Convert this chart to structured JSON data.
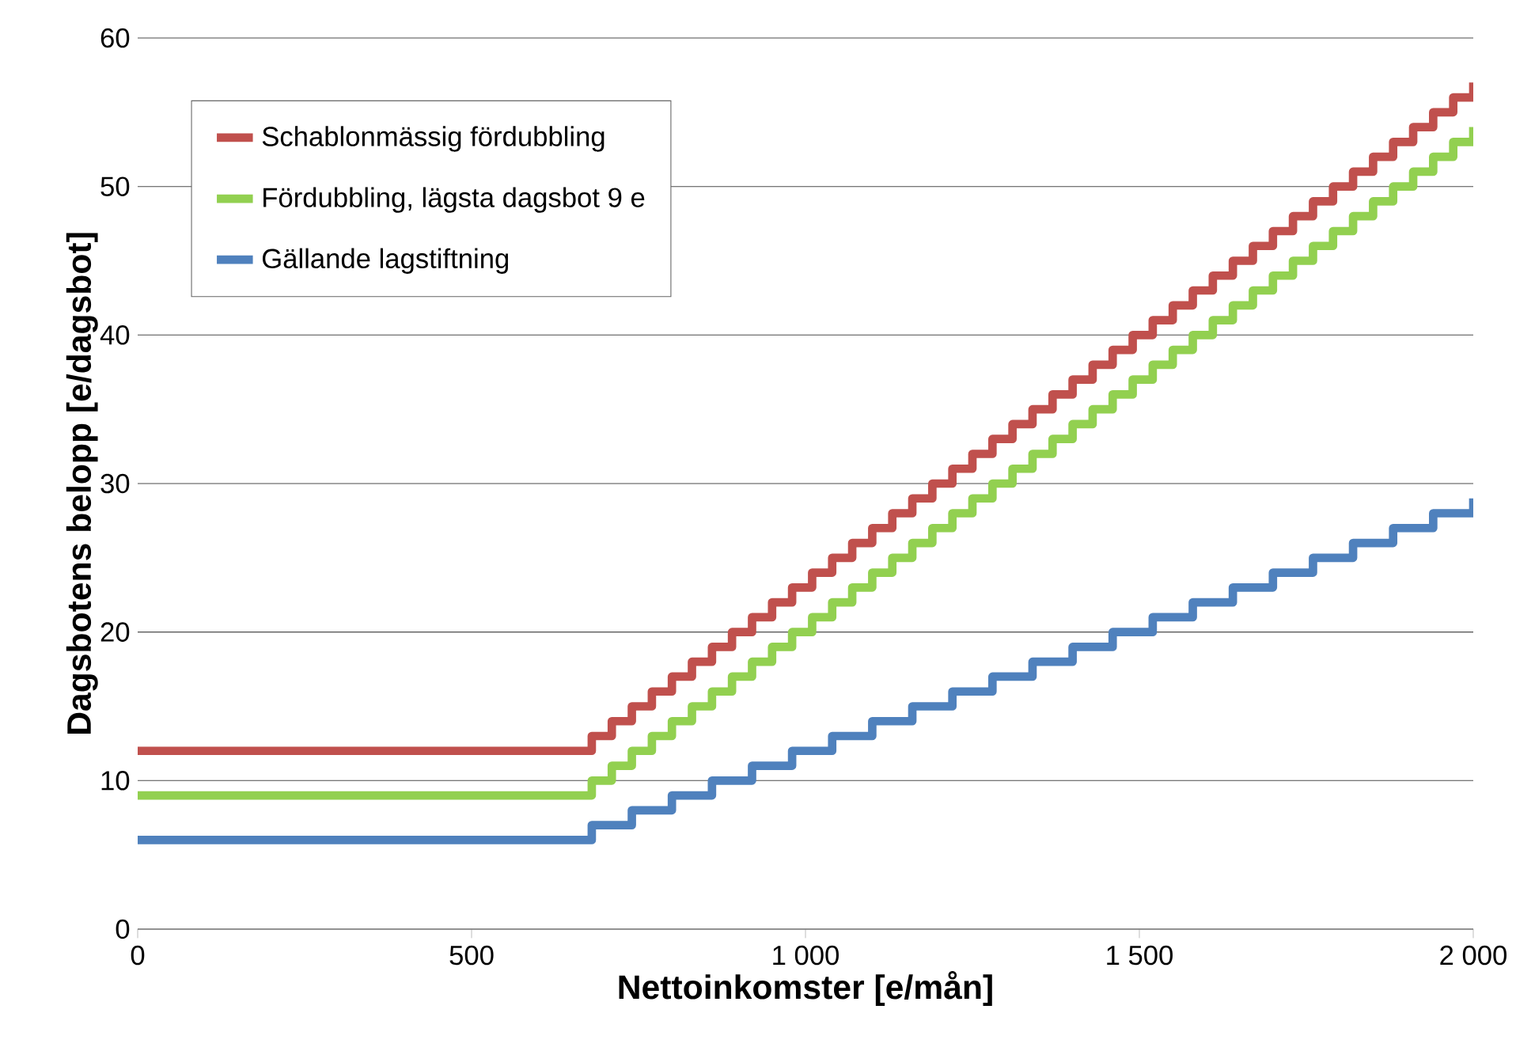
{
  "chart_data": {
    "type": "step",
    "xlabel": "Nettoinkomster [e/mån]",
    "ylabel": "Dagsbotens belopp [e/dagsbot]",
    "xlim": [
      0,
      2000
    ],
    "xticks": [
      0,
      500,
      {
        "value": 1000,
        "label": "1 000"
      },
      {
        "value": 1500,
        "label": "1 500"
      },
      {
        "value": 2000,
        "label": "2 000"
      }
    ],
    "ylim": [
      0,
      60
    ],
    "yticks": [
      0,
      10,
      20,
      30,
      40,
      50,
      60
    ],
    "grid": "y",
    "legend": "top left",
    "marker": "none",
    "line_style": "solid",
    "series": [
      {
        "name": "Schablonmässig fördubbling",
        "color": "#c0504d",
        "x": [
          0,
          680,
          710,
          740,
          770,
          800,
          830,
          860,
          890,
          920,
          950,
          980,
          1010,
          1040,
          1070,
          1100,
          1130,
          1160,
          1190,
          1220,
          1250,
          1280,
          1310,
          1340,
          1370,
          1400,
          1430,
          1460,
          1490,
          1520,
          1550,
          1580,
          1610,
          1640,
          1670,
          1700,
          1730,
          1760,
          1790,
          1820,
          1850,
          1880,
          1910,
          1940,
          1970,
          2000
        ],
        "values": [
          12,
          13,
          14,
          15,
          16,
          17,
          18,
          19,
          20,
          21,
          22,
          23,
          24,
          25,
          26,
          27,
          28,
          29,
          30,
          31,
          32,
          33,
          34,
          35,
          36,
          37,
          38,
          39,
          40,
          41,
          42,
          43,
          44,
          45,
          46,
          47,
          48,
          49,
          50,
          51,
          52,
          53,
          54,
          55,
          56,
          57
        ]
      },
      {
        "name": "Fördubbling, lägsta dagsbot 9 e",
        "color": "#92d050",
        "x": [
          0,
          680,
          710,
          740,
          770,
          800,
          830,
          860,
          890,
          920,
          950,
          980,
          1010,
          1040,
          1070,
          1100,
          1130,
          1160,
          1190,
          1220,
          1250,
          1280,
          1310,
          1340,
          1370,
          1400,
          1430,
          1460,
          1490,
          1520,
          1550,
          1580,
          1610,
          1640,
          1670,
          1700,
          1730,
          1760,
          1790,
          1820,
          1850,
          1880,
          1910,
          1940,
          1970,
          2000
        ],
        "values": [
          9,
          10,
          11,
          12,
          13,
          14,
          15,
          16,
          17,
          18,
          19,
          20,
          21,
          22,
          23,
          24,
          25,
          26,
          27,
          28,
          29,
          30,
          31,
          32,
          33,
          34,
          35,
          36,
          37,
          38,
          39,
          40,
          41,
          42,
          43,
          44,
          45,
          46,
          47,
          48,
          49,
          50,
          51,
          52,
          53,
          54
        ]
      },
      {
        "name": "Gällande lagstiftning",
        "color": "#4f81bd",
        "x": [
          0,
          680,
          740,
          800,
          860,
          920,
          980,
          1040,
          1100,
          1160,
          1220,
          1280,
          1340,
          1400,
          1460,
          1520,
          1580,
          1640,
          1700,
          1760,
          1820,
          1880,
          1940,
          2000
        ],
        "values": [
          6,
          7,
          8,
          9,
          10,
          11,
          12,
          13,
          14,
          15,
          16,
          17,
          18,
          19,
          20,
          21,
          22,
          23,
          24,
          25,
          26,
          27,
          28,
          29
        ]
      }
    ]
  }
}
